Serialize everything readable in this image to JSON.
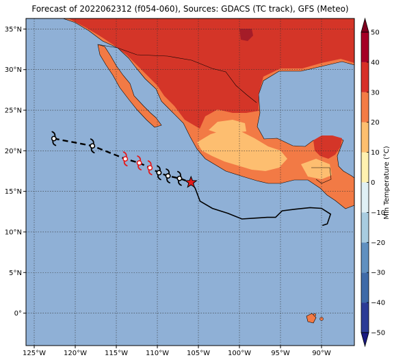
{
  "title": "Forecast of 2022062312 (f054-060), Sources: GDACS (TC track), GFS (Meteo)",
  "map": {
    "lon_range": [
      -126,
      -86
    ],
    "lat_range": [
      -4,
      36.3
    ],
    "lat_ticks": [
      {
        "value": 35,
        "label": "35°N"
      },
      {
        "value": 30,
        "label": "30°N"
      },
      {
        "value": 25,
        "label": "25°N"
      },
      {
        "value": 20,
        "label": "20°N"
      },
      {
        "value": 15,
        "label": "15°N"
      },
      {
        "value": 10,
        "label": "10°N"
      },
      {
        "value": 5,
        "label": "5°N"
      },
      {
        "value": 0,
        "label": "0°"
      }
    ],
    "lon_ticks": [
      {
        "value": -125,
        "label": "125°W"
      },
      {
        "value": -120,
        "label": "120°W"
      },
      {
        "value": -115,
        "label": "115°W"
      },
      {
        "value": -110,
        "label": "110°W"
      },
      {
        "value": -105,
        "label": "105°W"
      },
      {
        "value": -100,
        "label": "100°W"
      },
      {
        "value": -95,
        "label": "95°W"
      },
      {
        "value": -90,
        "label": "90°W"
      }
    ],
    "grid": true
  },
  "colorbar": {
    "label": "Min Temperature (°C)",
    "min": -50,
    "max": 50,
    "tick_labels": [
      "50",
      "40",
      "30",
      "20",
      "10",
      "0",
      "−10",
      "−20",
      "−30",
      "−40",
      "−50"
    ],
    "tick_values": [
      50,
      40,
      30,
      20,
      10,
      0,
      -10,
      -20,
      -30,
      -40,
      -50
    ],
    "colors": [
      "#1a1a80",
      "#2c3b96",
      "#3e6aa8",
      "#6090c0",
      "#a8cce0",
      "#e0f0f5",
      "#fff2b0",
      "#fdbf6f",
      "#f47c45",
      "#d73027",
      "#a50026",
      "#7f001f"
    ]
  },
  "colors": {
    "ocean": "#8fb0d6",
    "land_warm": "#f27a45",
    "land_hot": "#d43528",
    "land_mild": "#fdbe70",
    "land_very_hot": "#a51c28"
  },
  "forecast_track": [
    {
      "lon": -122.6,
      "lat": 21.5
    },
    {
      "lon": -117.9,
      "lat": 20.6
    },
    {
      "lon": -113.9,
      "lat": 19.0
    },
    {
      "lon": -112.2,
      "lat": 18.5
    },
    {
      "lon": -110.9,
      "lat": 17.9
    },
    {
      "lon": -109.8,
      "lat": 17.3
    },
    {
      "lon": -108.7,
      "lat": 16.9
    },
    {
      "lon": -107.3,
      "lat": 16.6
    },
    {
      "lon": -105.9,
      "lat": 16.1
    }
  ],
  "observed_track": [
    {
      "lon": -105.9,
      "lat": 16.1
    },
    {
      "lon": -105.4,
      "lat": 15.4
    },
    {
      "lon": -104.8,
      "lat": 13.8
    },
    {
      "lon": -103.3,
      "lat": 12.9
    },
    {
      "lon": -101.4,
      "lat": 12.3
    },
    {
      "lon": -99.7,
      "lat": 11.6
    },
    {
      "lon": -98.2,
      "lat": 11.7
    },
    {
      "lon": -96.6,
      "lat": 11.8
    },
    {
      "lon": -95.6,
      "lat": 11.8
    },
    {
      "lon": -94.8,
      "lat": 12.6
    },
    {
      "lon": -93.2,
      "lat": 12.8
    },
    {
      "lon": -91.4,
      "lat": 13.0
    },
    {
      "lon": -90.0,
      "lat": 12.9
    },
    {
      "lon": -88.9,
      "lat": 12.2
    },
    {
      "lon": -89.3,
      "lat": 11.0
    },
    {
      "lon": -89.9,
      "lat": 10.8
    }
  ],
  "symbols": [
    {
      "lon": -122.6,
      "lat": 21.5,
      "kind": "storm",
      "color": "#000000"
    },
    {
      "lon": -117.9,
      "lat": 20.6,
      "kind": "storm",
      "color": "#000000"
    },
    {
      "lon": -113.9,
      "lat": 19.0,
      "kind": "hurricane",
      "color": "#e31a1c"
    },
    {
      "lon": -112.2,
      "lat": 18.5,
      "kind": "hurricane",
      "color": "#e31a1c"
    },
    {
      "lon": -110.9,
      "lat": 17.9,
      "kind": "hurricane",
      "color": "#e31a1c"
    },
    {
      "lon": -109.8,
      "lat": 17.3,
      "kind": "storm",
      "color": "#000000"
    },
    {
      "lon": -108.7,
      "lat": 16.9,
      "kind": "storm",
      "color": "#000000"
    },
    {
      "lon": -107.3,
      "lat": 16.6,
      "kind": "storm",
      "color": "#000000"
    }
  ],
  "current_position": {
    "lon": -105.9,
    "lat": 16.1
  }
}
